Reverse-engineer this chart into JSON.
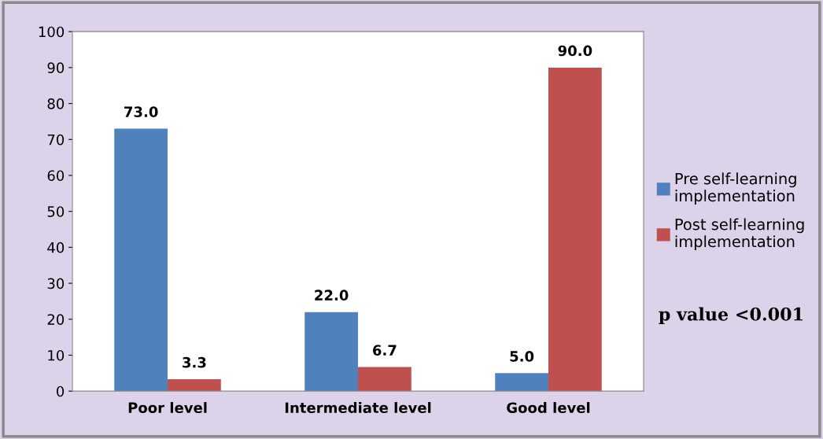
{
  "chart_data": {
    "type": "bar",
    "categories": [
      "Poor level",
      "Intermediate level",
      "Good level"
    ],
    "series": [
      {
        "name": "Pre self-learning\nimplementation",
        "color": "#4f81bd",
        "values": [
          73.0,
          22.0,
          5.0
        ],
        "value_labels": [
          "73.0",
          "22.0",
          "5.0"
        ]
      },
      {
        "name": "Post self-learning\nimplementation",
        "color": "#c0504d",
        "values": [
          3.3,
          6.7,
          90.0
        ],
        "value_labels": [
          "3.3",
          "6.7",
          "90.0"
        ]
      }
    ],
    "ylim": [
      0,
      100
    ],
    "yticks": [
      0,
      10,
      20,
      30,
      40,
      50,
      60,
      70,
      80,
      90,
      100
    ],
    "grid": false,
    "legend": "right",
    "annotations": [
      "p value <0.001"
    ]
  }
}
